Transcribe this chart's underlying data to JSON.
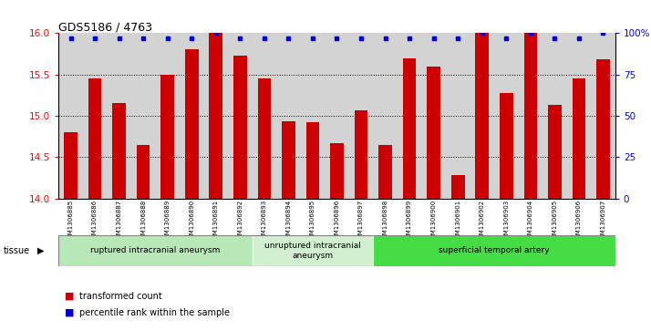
{
  "title": "GDS5186 / 4763",
  "samples": [
    "GSM1306885",
    "GSM1306886",
    "GSM1306887",
    "GSM1306888",
    "GSM1306889",
    "GSM1306890",
    "GSM1306891",
    "GSM1306892",
    "GSM1306893",
    "GSM1306894",
    "GSM1306895",
    "GSM1306896",
    "GSM1306897",
    "GSM1306898",
    "GSM1306899",
    "GSM1306900",
    "GSM1306901",
    "GSM1306902",
    "GSM1306903",
    "GSM1306904",
    "GSM1306905",
    "GSM1306906",
    "GSM1306907"
  ],
  "bar_values": [
    14.8,
    15.45,
    15.15,
    14.65,
    15.5,
    15.8,
    16.0,
    15.73,
    15.45,
    14.93,
    14.92,
    14.67,
    15.07,
    14.65,
    15.7,
    15.6,
    14.28,
    16.0,
    15.28,
    16.0,
    15.13,
    15.45,
    15.68
  ],
  "percentile_values": [
    97,
    97,
    97,
    97,
    97,
    97,
    100,
    97,
    97,
    97,
    97,
    97,
    97,
    97,
    97,
    97,
    97,
    100,
    97,
    100,
    97,
    97,
    100
  ],
  "bar_color": "#cc0000",
  "percentile_color": "#0000cc",
  "ylim_left": [
    14.0,
    16.0
  ],
  "ylim_right": [
    0,
    100
  ],
  "yticks_left": [
    14.0,
    14.5,
    15.0,
    15.5,
    16.0
  ],
  "yticks_right": [
    0,
    25,
    50,
    75,
    100
  ],
  "ytick_labels_right": [
    "0",
    "25",
    "50",
    "75",
    "100%"
  ],
  "groups": [
    {
      "label": "ruptured intracranial aneurysm",
      "start": 0,
      "end": 8,
      "color": "#b8e8b8"
    },
    {
      "label": "unruptured intracranial\naneurysm",
      "start": 8,
      "end": 13,
      "color": "#d0f0d0"
    },
    {
      "label": "superficial temporal artery",
      "start": 13,
      "end": 23,
      "color": "#44dd44"
    }
  ],
  "plot_bg_color": "#d3d3d3",
  "xtick_bg_color": "#cccccc",
  "grid_dotted_ticks": [
    14.5,
    15.0,
    15.5
  ]
}
